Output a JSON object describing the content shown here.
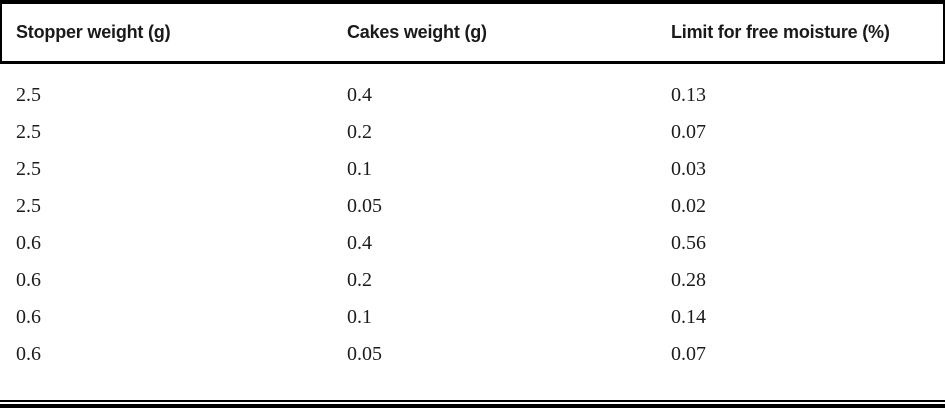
{
  "table": {
    "columns": [
      {
        "label": "Stopper weight (g)"
      },
      {
        "label": "Cakes weight (g)"
      },
      {
        "label": "Limit for free moisture (%)"
      }
    ],
    "rows": [
      [
        "2.5",
        "0.4",
        "0.13"
      ],
      [
        "2.5",
        "0.2",
        "0.07"
      ],
      [
        "2.5",
        "0.1",
        "0.03"
      ],
      [
        "2.5",
        "0.05",
        "0.02"
      ],
      [
        "0.6",
        "0.4",
        "0.56"
      ],
      [
        "0.6",
        "0.2",
        "0.28"
      ],
      [
        "0.6",
        "0.1",
        "0.14"
      ],
      [
        "0.6",
        "0.05",
        "0.07"
      ]
    ],
    "colors": {
      "rule": "#000000",
      "text": "#1c1c1c",
      "background": "#ffffff"
    }
  },
  "chart_data": {
    "type": "table",
    "columns": [
      "Stopper weight (g)",
      "Cakes weight (g)",
      "Limit for free moisture (%)"
    ],
    "rows": [
      [
        2.5,
        0.4,
        0.13
      ],
      [
        2.5,
        0.2,
        0.07
      ],
      [
        2.5,
        0.1,
        0.03
      ],
      [
        2.5,
        0.05,
        0.02
      ],
      [
        0.6,
        0.4,
        0.56
      ],
      [
        0.6,
        0.2,
        0.28
      ],
      [
        0.6,
        0.1,
        0.14
      ],
      [
        0.6,
        0.05,
        0.07
      ]
    ]
  }
}
